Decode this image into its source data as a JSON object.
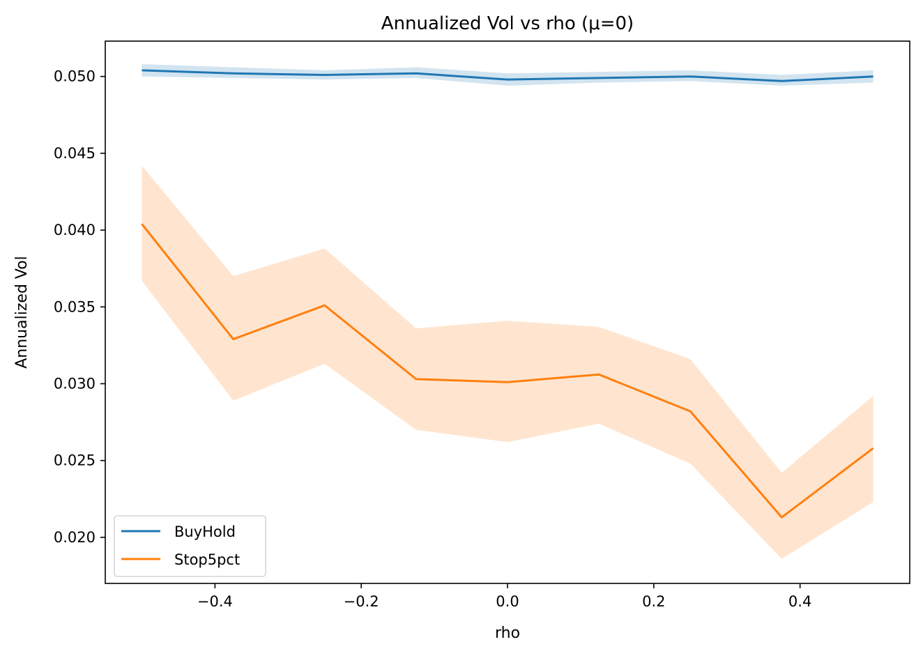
{
  "chart_data": {
    "type": "line",
    "title": "Annualized Vol vs rho (μ=0)",
    "xlabel": "rho",
    "ylabel": "Annualized Vol",
    "x": [
      -0.5,
      -0.375,
      -0.25,
      -0.125,
      0.0,
      0.125,
      0.25,
      0.375,
      0.5
    ],
    "xlim": [
      -0.55,
      0.55
    ],
    "ylim": [
      0.017,
      0.0523
    ],
    "xticks": [
      -0.4,
      -0.2,
      0.0,
      0.2,
      0.4
    ],
    "xtick_labels": [
      "−0.4",
      "−0.2",
      "0.0",
      "0.2",
      "0.4"
    ],
    "yticks": [
      0.02,
      0.025,
      0.03,
      0.035,
      0.04,
      0.045,
      0.05
    ],
    "ytick_labels": [
      "0.020",
      "0.025",
      "0.030",
      "0.035",
      "0.040",
      "0.045",
      "0.050"
    ],
    "grid": false,
    "legend_position": "lower-left",
    "series": [
      {
        "name": "BuyHold",
        "color": "#1f77b4",
        "values": [
          0.0504,
          0.0502,
          0.0501,
          0.0502,
          0.0498,
          0.0499,
          0.05,
          0.0497,
          0.05
        ],
        "lower": [
          0.05,
          0.0499,
          0.0498,
          0.0499,
          0.0494,
          0.0496,
          0.0497,
          0.0494,
          0.0496
        ],
        "upper": [
          0.0508,
          0.0506,
          0.0504,
          0.0506,
          0.0502,
          0.0503,
          0.0504,
          0.0501,
          0.0504
        ]
      },
      {
        "name": "Stop5pct",
        "color": "#ff7f0e",
        "values": [
          0.0404,
          0.0329,
          0.0351,
          0.0303,
          0.0301,
          0.0306,
          0.0282,
          0.0213,
          0.0258
        ],
        "lower": [
          0.0367,
          0.0289,
          0.0313,
          0.027,
          0.0262,
          0.0274,
          0.0248,
          0.0186,
          0.0223
        ],
        "upper": [
          0.0442,
          0.037,
          0.0388,
          0.0336,
          0.0341,
          0.0337,
          0.0316,
          0.0242,
          0.0292
        ]
      }
    ]
  }
}
